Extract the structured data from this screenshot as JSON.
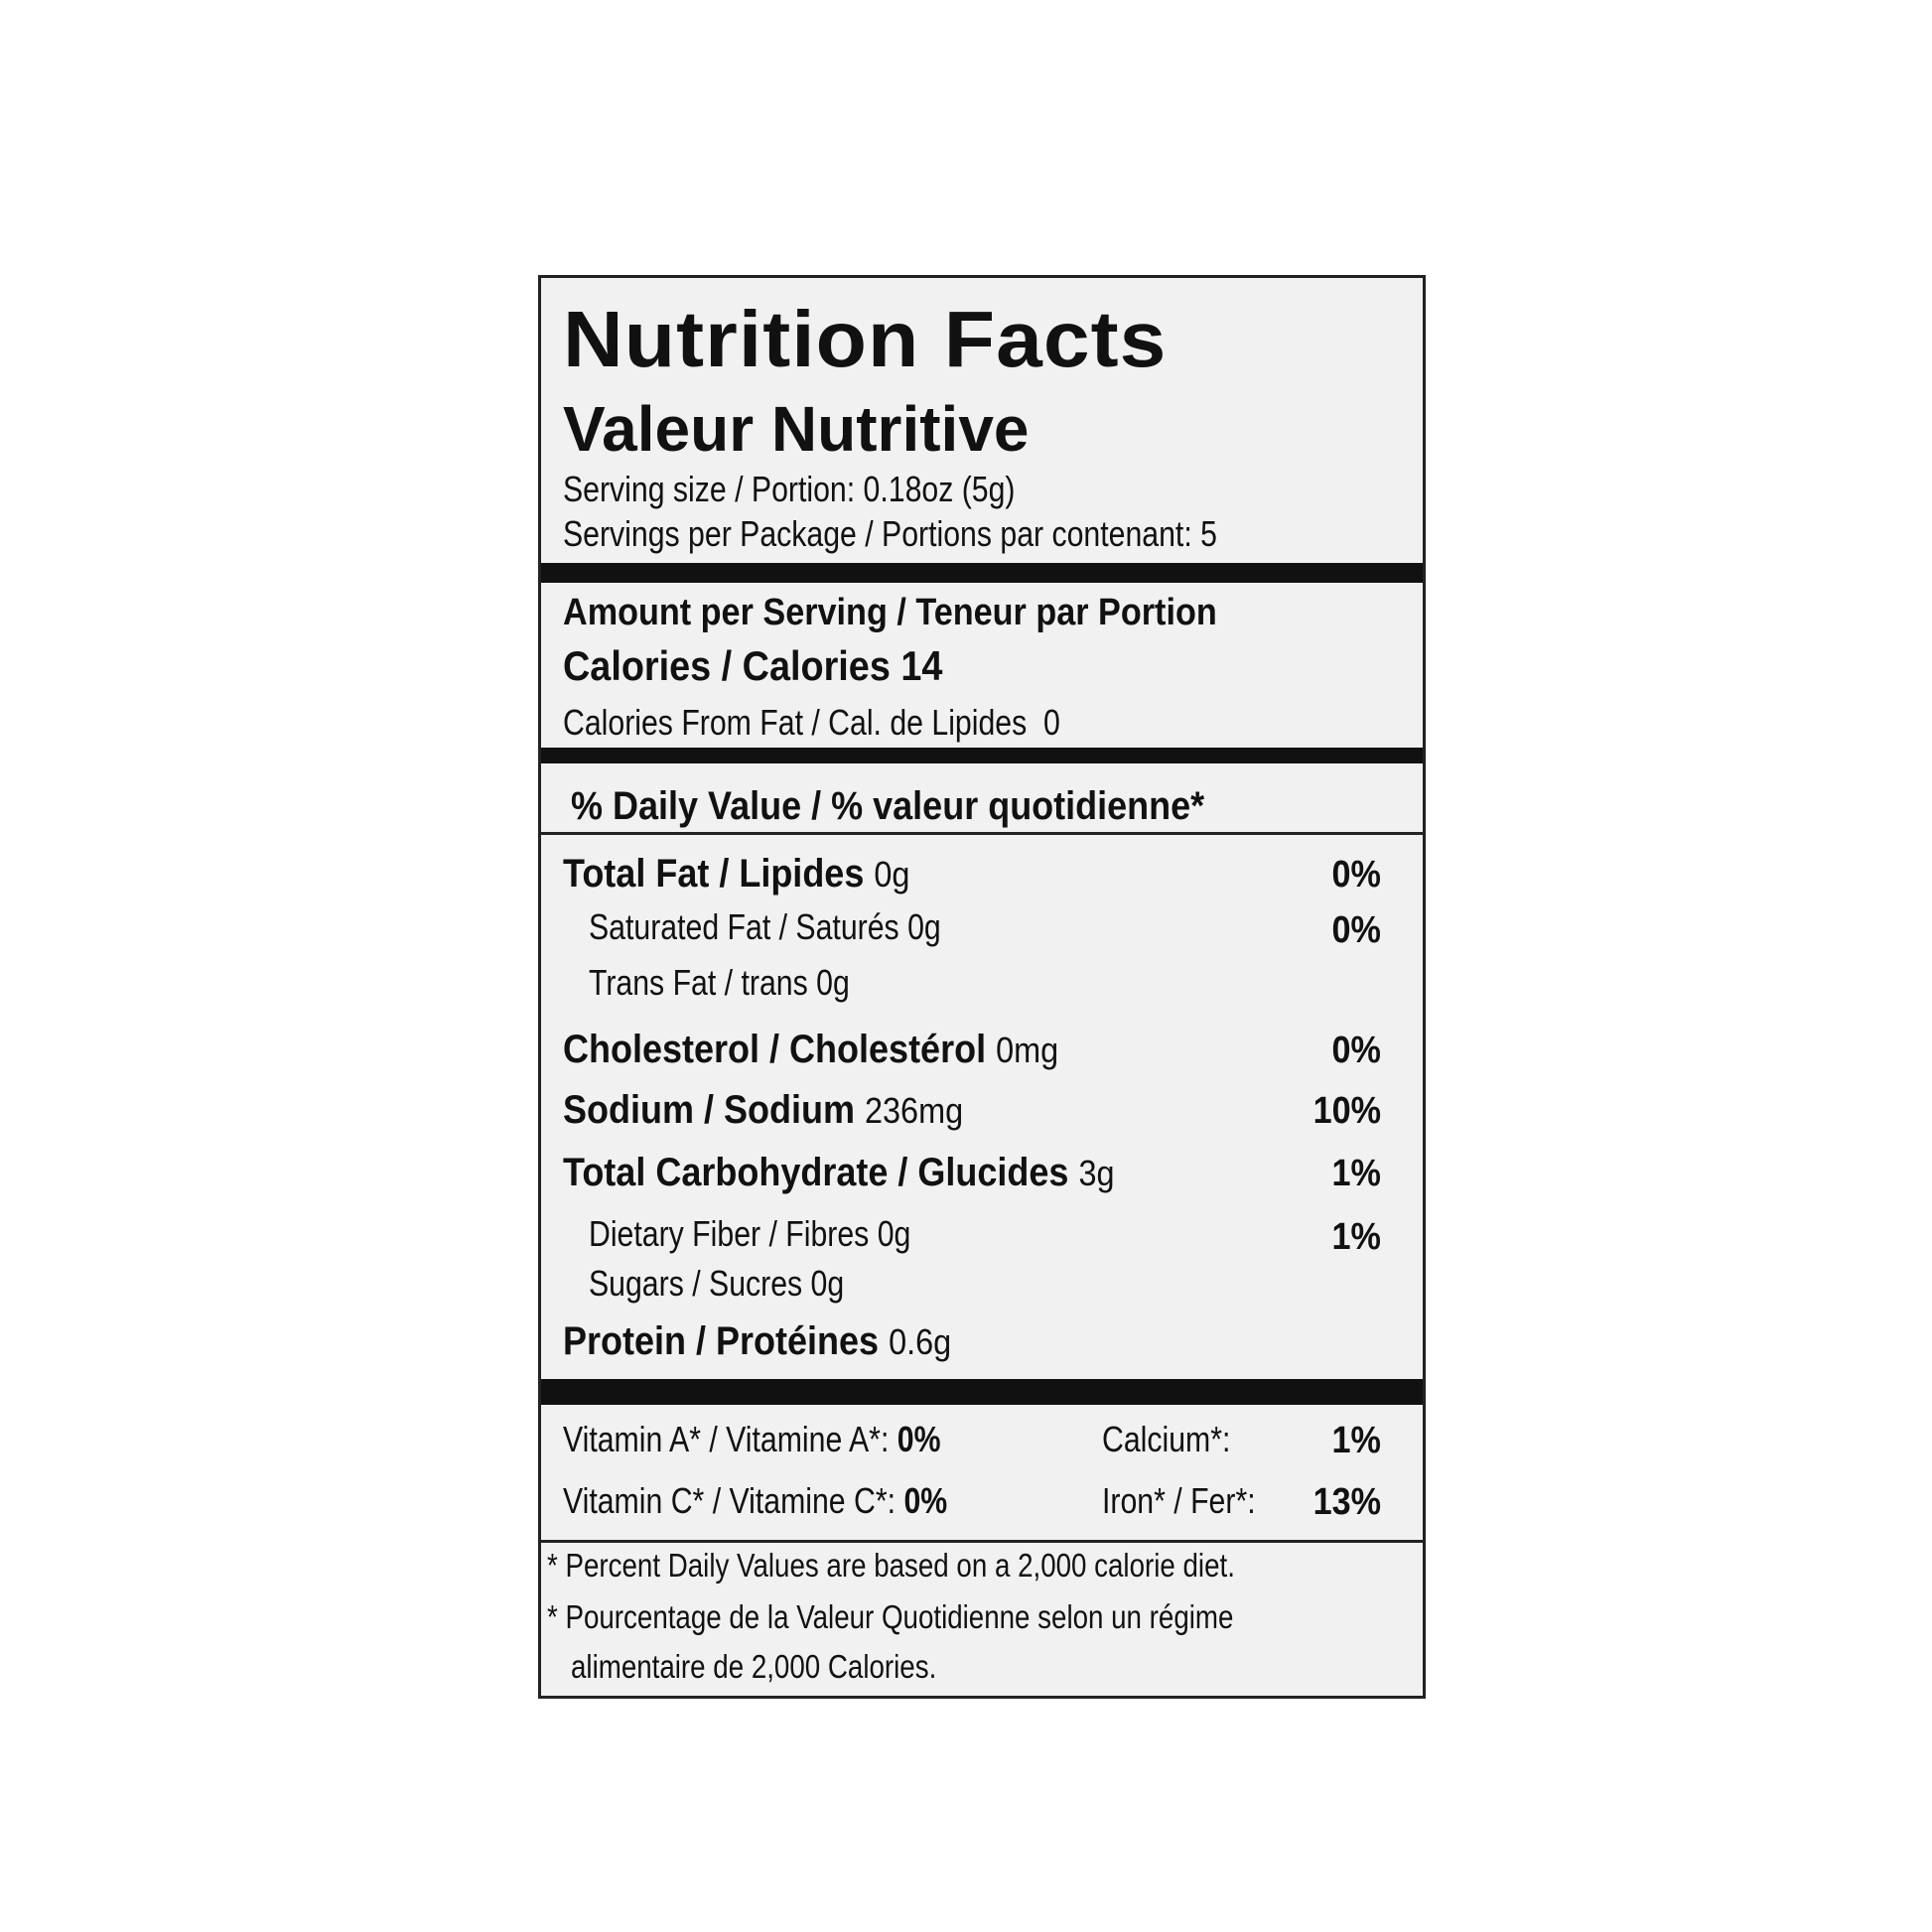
{
  "title": "Nutrition Facts",
  "title_fr": "Valeur Nutritive",
  "serving_size": "Serving size / Portion: 0.18oz (5g)",
  "servings_per_package": "Servings per Package / Portions par contenant: 5",
  "amount_per_serving": "Amount per Serving / Teneur par Portion",
  "calories": {
    "label": "Calories / Calories",
    "value": "14"
  },
  "calories_from_fat": {
    "label": "Calories From Fat / Cal. de Lipides",
    "value": "0"
  },
  "daily_value_header": "% Daily Value / % valeur quotidienne*",
  "nutrients": [
    {
      "label": "Total Fat / Lipides",
      "amount": "0g",
      "dv": "0%",
      "bold": true
    },
    {
      "label": "Saturated Fat / Saturés",
      "amount": "0g",
      "dv": "0%",
      "bold": false
    },
    {
      "label": "Trans Fat / trans",
      "amount": "0g",
      "dv": "",
      "bold": false
    },
    {
      "label": "Cholesterol / Cholestérol",
      "amount": "0mg",
      "dv": "0%",
      "bold": true
    },
    {
      "label": "Sodium / Sodium",
      "amount": "236mg",
      "dv": "10%",
      "bold": true
    },
    {
      "label": "Total Carbohydrate / Glucides",
      "amount": "3g",
      "dv": "1%",
      "bold": true
    },
    {
      "label": "Dietary Fiber / Fibres",
      "amount": "0g",
      "dv": "1%",
      "bold": false
    },
    {
      "label": "Sugars / Sucres",
      "amount": "0g",
      "dv": "",
      "bold": false
    },
    {
      "label": "Protein / Protéines",
      "amount": "0.6g",
      "dv": "",
      "bold": true
    }
  ],
  "vitamins": [
    {
      "label": "Vitamin A* / Vitamine A*:",
      "value": "0%"
    },
    {
      "label": "Vitamin C* / Vitamine C*:",
      "value": "0%"
    },
    {
      "label": "Calcium*:",
      "value": "1%"
    },
    {
      "label": "Iron* / Fer*:",
      "value": "13%"
    }
  ],
  "footnotes": [
    "* Percent Daily Values are based on a 2,000 calorie diet.",
    "* Pourcentage de la Valeur Quotidienne selon un régime",
    "alimentaire de 2,000 Calories."
  ]
}
